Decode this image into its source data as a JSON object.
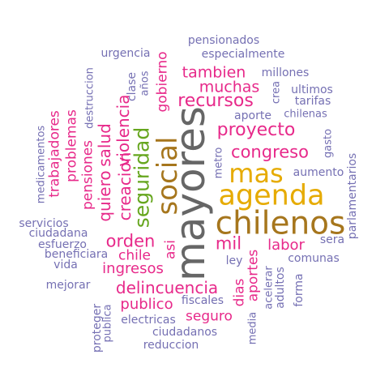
{
  "palette": {
    "slate": "#7570b3",
    "pink": "#e7298a",
    "olive": "#66a61e",
    "gold": "#e6ab02",
    "brown": "#a6761d",
    "gray": "#666666"
  },
  "words": [
    {
      "text": "mayores",
      "color": "#666666"
    },
    {
      "text": "chilenos",
      "color": "#a6761d"
    },
    {
      "text": "agenda",
      "color": "#e6ab02"
    },
    {
      "text": "social",
      "color": "#a6761d"
    },
    {
      "text": "mas",
      "color": "#e6ab02"
    },
    {
      "text": "seguridad",
      "color": "#66a61e"
    },
    {
      "text": "recursos",
      "color": "#e7298a"
    },
    {
      "text": "proyecto",
      "color": "#e7298a"
    },
    {
      "text": "congreso",
      "color": "#e7298a"
    },
    {
      "text": "tambien",
      "color": "#e7298a"
    },
    {
      "text": "muchas",
      "color": "#e7298a"
    },
    {
      "text": "creacion",
      "color": "#e7298a"
    },
    {
      "text": "violencia",
      "color": "#e7298a"
    },
    {
      "text": "quiero",
      "color": "#e7298a"
    },
    {
      "text": "salud",
      "color": "#e7298a"
    },
    {
      "text": "orden",
      "color": "#e7298a"
    },
    {
      "text": "mil",
      "color": "#e7298a"
    },
    {
      "text": "labor",
      "color": "#e7298a"
    },
    {
      "text": "delincuencia",
      "color": "#e7298a"
    },
    {
      "text": "ingresos",
      "color": "#e7298a"
    },
    {
      "text": "chile",
      "color": "#e7298a"
    },
    {
      "text": "publico",
      "color": "#e7298a"
    },
    {
      "text": "seguro",
      "color": "#e7298a"
    },
    {
      "text": "asi",
      "color": "#e7298a"
    },
    {
      "text": "gobierno",
      "color": "#e7298a"
    },
    {
      "text": "trabajadores",
      "color": "#e7298a"
    },
    {
      "text": "pensiones",
      "color": "#e7298a"
    },
    {
      "text": "problemas",
      "color": "#e7298a"
    },
    {
      "text": "aportes",
      "color": "#e7298a"
    },
    {
      "text": "dias",
      "color": "#e7298a"
    },
    {
      "text": "pensionados",
      "color": "#7570b3"
    },
    {
      "text": "especialmente",
      "color": "#7570b3"
    },
    {
      "text": "urgencia",
      "color": "#7570b3"
    },
    {
      "text": "millones",
      "color": "#7570b3"
    },
    {
      "text": "ultimos",
      "color": "#7570b3"
    },
    {
      "text": "tarifas",
      "color": "#7570b3"
    },
    {
      "text": "chilenas",
      "color": "#7570b3"
    },
    {
      "text": "aporte",
      "color": "#7570b3"
    },
    {
      "text": "aumento",
      "color": "#7570b3"
    },
    {
      "text": "sera",
      "color": "#7570b3"
    },
    {
      "text": "comunas",
      "color": "#7570b3"
    },
    {
      "text": "ley",
      "color": "#7570b3"
    },
    {
      "text": "fiscales",
      "color": "#7570b3"
    },
    {
      "text": "electricas",
      "color": "#7570b3"
    },
    {
      "text": "ciudadanos",
      "color": "#7570b3"
    },
    {
      "text": "reduccion",
      "color": "#7570b3"
    },
    {
      "text": "servicios",
      "color": "#7570b3"
    },
    {
      "text": "ciudadana",
      "color": "#7570b3"
    },
    {
      "text": "esfuerzo",
      "color": "#7570b3"
    },
    {
      "text": "beneficiara",
      "color": "#7570b3"
    },
    {
      "text": "vida",
      "color": "#7570b3"
    },
    {
      "text": "mejorar",
      "color": "#7570b3"
    },
    {
      "text": "medicamentos",
      "color": "#7570b3"
    },
    {
      "text": "destruccion",
      "color": "#7570b3"
    },
    {
      "text": "clase",
      "color": "#7570b3"
    },
    {
      "text": "años",
      "color": "#7570b3"
    },
    {
      "text": "crea",
      "color": "#7570b3"
    },
    {
      "text": "gasto",
      "color": "#7570b3"
    },
    {
      "text": "parlamentarios",
      "color": "#7570b3"
    },
    {
      "text": "metro",
      "color": "#7570b3"
    },
    {
      "text": "proteger",
      "color": "#7570b3"
    },
    {
      "text": "publica",
      "color": "#7570b3"
    },
    {
      "text": "media",
      "color": "#7570b3"
    },
    {
      "text": "acelerar",
      "color": "#7570b3"
    },
    {
      "text": "adultos",
      "color": "#7570b3"
    },
    {
      "text": "forma",
      "color": "#7570b3"
    }
  ]
}
